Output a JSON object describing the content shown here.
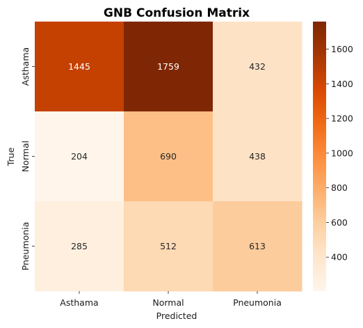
{
  "chart_data": {
    "type": "heatmap",
    "title": "GNB Confusion Matrix",
    "xlabel": "Predicted",
    "ylabel": "True",
    "x_categories": [
      "Asthama",
      "Normal",
      "Pneumonia"
    ],
    "y_categories": [
      "Asthama",
      "Normal",
      "Pneumonia"
    ],
    "values": [
      [
        1445,
        1759,
        432
      ],
      [
        204,
        690,
        438
      ],
      [
        285,
        512,
        613
      ]
    ],
    "colormap": "Oranges",
    "colorbar": {
      "vmin": 204,
      "vmax": 1759,
      "ticks": [
        400,
        600,
        800,
        1000,
        1200,
        1400,
        1600
      ],
      "tick_labels": [
        "400",
        "600",
        "800",
        "1000",
        "1200",
        "1400",
        "1600"
      ]
    }
  }
}
